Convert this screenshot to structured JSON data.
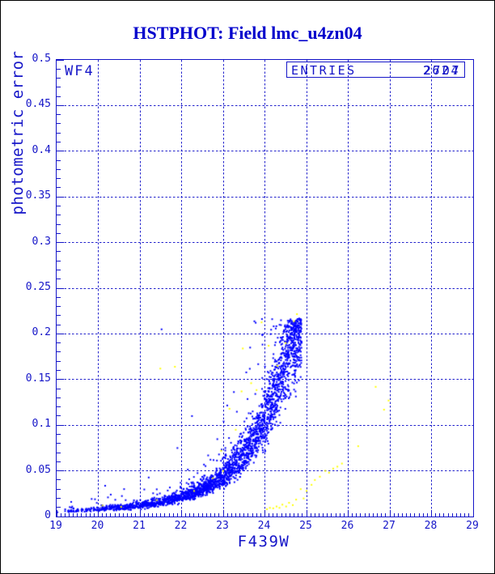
{
  "page": {
    "title": "HSTPHOT: Field lmc_u4zn04"
  },
  "plot": {
    "chip_label": "WF4",
    "entries": {
      "label": "ENTRIES",
      "values": [
        "2624",
        "2707"
      ]
    },
    "x_axis": {
      "label": "F439W",
      "min": 19,
      "max": 29,
      "major_tick_labels": [
        "19",
        "20",
        "21",
        "22",
        "23",
        "24",
        "25",
        "26",
        "27",
        "28",
        "29"
      ],
      "minor_tick_step": 0.1
    },
    "y_axis": {
      "label": "photometric error",
      "min": 0,
      "max": 0.5,
      "major_tick_labels": [
        "0.5",
        "0.45",
        "0.4",
        "0.35",
        "0.3",
        "0.25",
        "0.2",
        "0.15",
        "0.1",
        "0.05",
        "0"
      ],
      "minor_tick_step": 0.01
    },
    "colors": {
      "frame_and_text": "#1515c8",
      "grid": "#2222cc",
      "title": "#0000cc",
      "blue_points": "#0000ff",
      "yellow_points": "#ffff00",
      "background": "#ffffff"
    }
  },
  "chart_data": {
    "type": "scatter",
    "title": "HSTPHOT: Field lmc_u4zn04",
    "xlabel": "F439W",
    "ylabel": "photometric error",
    "xlim": [
      19,
      29
    ],
    "ylim": [
      0,
      0.5
    ],
    "grid": "dashed blue gridlines at every major tick (x every 1 mag, y every 0.05)",
    "legend_position": "none",
    "annotations": [
      "WF4 chip label top-left",
      "ENTRIES box top-right with overlaid counts 2624 and 2707"
    ],
    "series": [
      {
        "name": "WF4 detections (blue)",
        "color": "#0000ff",
        "marker": "2px square",
        "n_points": 2624,
        "locus_median_err_vs_mag": [
          [
            19,
            0.0055
          ],
          [
            19.5,
            0.0065
          ],
          [
            20,
            0.008
          ],
          [
            20.5,
            0.0095
          ],
          [
            21,
            0.012
          ],
          [
            21.5,
            0.0155
          ],
          [
            22,
            0.021
          ],
          [
            22.5,
            0.03
          ],
          [
            23,
            0.044
          ],
          [
            23.5,
            0.068
          ],
          [
            23.8,
            0.088
          ],
          [
            24,
            0.105
          ],
          [
            24.2,
            0.128
          ],
          [
            24.4,
            0.155
          ],
          [
            24.6,
            0.18
          ],
          [
            24.75,
            0.198
          ],
          [
            24.88,
            0.212
          ]
        ],
        "mag_range": [
          19,
          24.88
        ],
        "err_ceiling": 0.217,
        "scatter_model": "lognormal sigma 0.15 with ~9% upward tail",
        "outliers": [
          [
            21.52,
            0.205
          ],
          [
            19.35,
            0.016
          ],
          [
            20.3,
            0.024
          ],
          [
            21.9,
            0.075
          ],
          [
            22.25,
            0.11
          ],
          [
            20.62,
            0.03
          ]
        ]
      },
      {
        "name": "secondary detections (yellow)",
        "color": "#ffff00",
        "marker": "2px square",
        "points": [
          [
            20.1,
            0.012
          ],
          [
            20.55,
            0.0105
          ],
          [
            21.4,
            0.018
          ],
          [
            21.49,
            0.162
          ],
          [
            21.84,
            0.164
          ],
          [
            22.3,
            0.028
          ],
          [
            22.75,
            0.042
          ],
          [
            22.95,
            0.072
          ],
          [
            23.0,
            0.05
          ],
          [
            23.15,
            0.118
          ],
          [
            23.3,
            0.095
          ],
          [
            23.44,
            0.137
          ],
          [
            23.47,
            0.184
          ],
          [
            23.67,
            0.146
          ],
          [
            23.8,
            0.1385
          ],
          [
            23.92,
            0.2126
          ],
          [
            24.09,
            0.187
          ],
          [
            24.3,
            0.165
          ],
          [
            24.5,
            0.19
          ],
          [
            24.7,
            0.214
          ],
          [
            24.77,
            0.2216
          ],
          [
            24.05,
            0.008
          ],
          [
            24.12,
            0.0095
          ],
          [
            24.2,
            0.009
          ],
          [
            24.28,
            0.011
          ],
          [
            24.35,
            0.0095
          ],
          [
            24.42,
            0.013
          ],
          [
            24.51,
            0.011
          ],
          [
            24.58,
            0.015
          ],
          [
            24.67,
            0.0125
          ],
          [
            24.75,
            0.0185
          ],
          [
            24.86,
            0.03
          ],
          [
            24.93,
            0.0198
          ],
          [
            25.0,
            0.028
          ],
          [
            25.12,
            0.0347
          ],
          [
            25.2,
            0.04
          ],
          [
            25.32,
            0.0436
          ],
          [
            25.45,
            0.05
          ],
          [
            25.54,
            0.048
          ],
          [
            25.64,
            0.0525
          ],
          [
            25.74,
            0.0546
          ],
          [
            25.85,
            0.058
          ],
          [
            26.24,
            0.077
          ],
          [
            26.66,
            0.142
          ],
          [
            26.86,
            0.117
          ],
          [
            26.97,
            0.127
          ]
        ]
      }
    ]
  }
}
